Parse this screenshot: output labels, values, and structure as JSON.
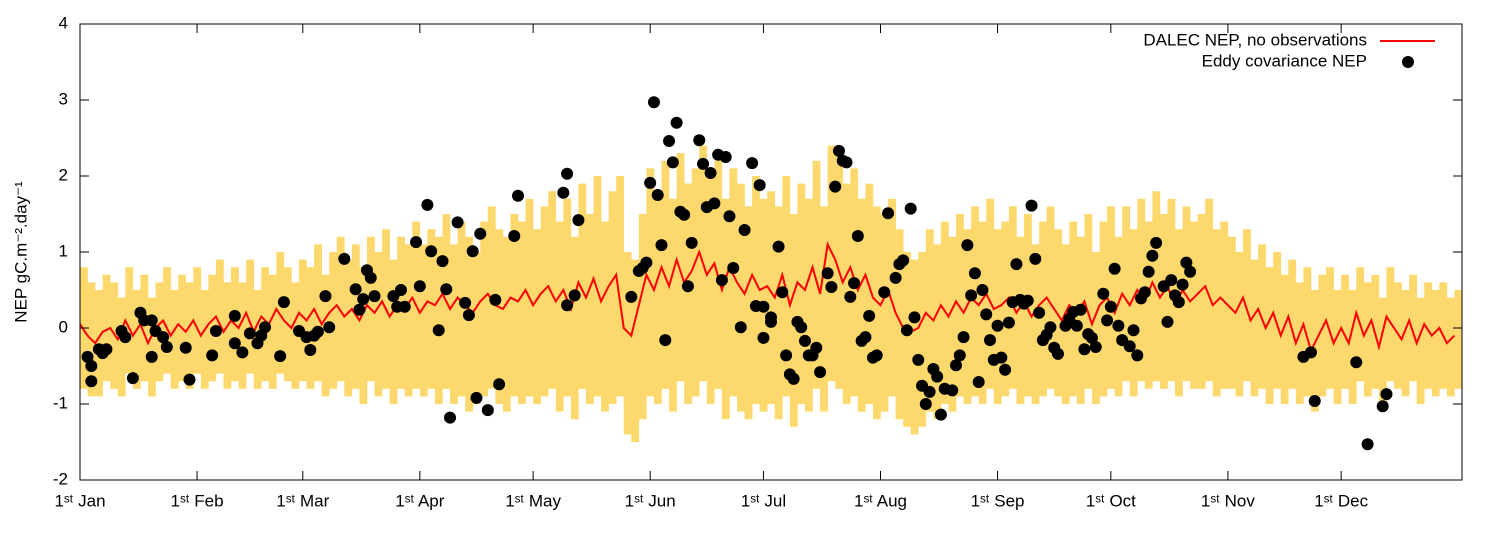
{
  "chart_data": {
    "type": "line",
    "ylabel": "NEP gC.m⁻².day⁻¹",
    "xlim": [
      0,
      366
    ],
    "ylim": [
      -2,
      4
    ],
    "yticks": [
      -2,
      -1,
      0,
      1,
      2,
      3,
      4
    ],
    "xticks": [
      {
        "value": 0,
        "label": "1ˢᵗ Jan"
      },
      {
        "value": 31,
        "label": "1ˢᵗ Feb"
      },
      {
        "value": 59,
        "label": "1ˢᵗ Mar"
      },
      {
        "value": 90,
        "label": "1ˢᵗ Apr"
      },
      {
        "value": 120,
        "label": "1ˢᵗ May"
      },
      {
        "value": 151,
        "label": "1ˢᵗ Jun"
      },
      {
        "value": 181,
        "label": "1ˢᵗ Jul"
      },
      {
        "value": 212,
        "label": "1ˢᵗ Aug"
      },
      {
        "value": 243,
        "label": "1ˢᵗ Sep"
      },
      {
        "value": 273,
        "label": "1ˢᵗ Oct"
      },
      {
        "value": 304,
        "label": "1ˢᵗ Nov"
      },
      {
        "value": 334,
        "label": "1ˢᵗ Dec"
      }
    ],
    "legend": "top-right",
    "x": [
      0,
      2,
      4,
      6,
      8,
      10,
      12,
      14,
      16,
      18,
      20,
      22,
      24,
      26,
      28,
      30,
      32,
      34,
      36,
      38,
      40,
      42,
      44,
      46,
      48,
      50,
      52,
      54,
      56,
      58,
      60,
      62,
      64,
      66,
      68,
      70,
      72,
      74,
      76,
      78,
      80,
      82,
      84,
      86,
      88,
      90,
      92,
      94,
      96,
      98,
      100,
      102,
      104,
      106,
      108,
      110,
      112,
      114,
      116,
      118,
      120,
      122,
      124,
      126,
      128,
      130,
      132,
      134,
      136,
      138,
      140,
      142,
      144,
      146,
      148,
      150,
      152,
      154,
      156,
      158,
      160,
      162,
      164,
      166,
      168,
      170,
      172,
      174,
      176,
      178,
      180,
      182,
      184,
      186,
      188,
      190,
      192,
      194,
      196,
      198,
      200,
      202,
      204,
      206,
      208,
      210,
      212,
      214,
      216,
      218,
      220,
      222,
      224,
      226,
      228,
      230,
      232,
      234,
      236,
      238,
      240,
      242,
      244,
      246,
      248,
      250,
      252,
      254,
      256,
      258,
      260,
      262,
      264,
      266,
      268,
      270,
      272,
      274,
      276,
      278,
      280,
      282,
      284,
      286,
      288,
      290,
      292,
      294,
      296,
      298,
      300,
      302,
      304,
      306,
      308,
      310,
      312,
      314,
      316,
      318,
      320,
      322,
      324,
      326,
      328,
      330,
      332,
      334,
      336,
      338,
      340,
      342,
      344,
      346,
      348,
      350,
      352,
      354,
      356,
      358,
      360,
      362,
      364
    ],
    "series": [
      {
        "name": "DALEC NEP, no observations",
        "color": "#ff0000",
        "values": [
          0.05,
          -0.1,
          -0.2,
          -0.05,
          0.0,
          -0.15,
          0.1,
          -0.1,
          0.05,
          -0.2,
          0.0,
          0.1,
          -0.1,
          0.05,
          -0.05,
          0.1,
          -0.1,
          0.05,
          0.15,
          -0.05,
          0.1,
          0.0,
          0.2,
          -0.05,
          0.15,
          0.05,
          0.25,
          0.1,
          0.0,
          0.2,
          0.1,
          0.25,
          0.05,
          0.2,
          0.3,
          0.15,
          0.25,
          0.1,
          0.3,
          0.2,
          0.35,
          0.15,
          0.3,
          0.25,
          0.4,
          0.2,
          0.35,
          0.3,
          0.45,
          0.25,
          0.4,
          0.3,
          0.2,
          0.35,
          0.45,
          0.3,
          0.25,
          0.4,
          0.35,
          0.5,
          0.3,
          0.45,
          0.55,
          0.35,
          0.5,
          0.25,
          0.6,
          0.4,
          0.65,
          0.35,
          0.55,
          0.7,
          0.0,
          -0.1,
          0.3,
          0.7,
          0.5,
          0.8,
          0.55,
          0.9,
          0.6,
          0.75,
          1.0,
          0.7,
          0.85,
          0.5,
          0.8,
          0.6,
          0.45,
          0.7,
          0.5,
          0.55,
          0.4,
          0.7,
          0.3,
          0.6,
          0.5,
          0.8,
          0.45,
          1.1,
          0.9,
          0.6,
          0.8,
          0.5,
          0.7,
          0.4,
          0.3,
          0.5,
          0.2,
          0.0,
          -0.05,
          0.0,
          0.2,
          0.1,
          0.3,
          0.15,
          0.35,
          0.2,
          0.4,
          0.3,
          0.45,
          0.25,
          0.3,
          0.4,
          0.2,
          0.35,
          0.15,
          0.3,
          0.4,
          0.25,
          0.1,
          0.3,
          0.2,
          0.35,
          0.05,
          0.3,
          0.4,
          0.2,
          0.45,
          0.3,
          0.5,
          0.35,
          0.6,
          0.4,
          0.55,
          0.3,
          0.5,
          0.35,
          0.45,
          0.55,
          0.3,
          0.4,
          0.3,
          0.2,
          0.4,
          0.1,
          0.25,
          0.0,
          0.2,
          -0.1,
          0.15,
          -0.2,
          0.05,
          -0.3,
          -0.1,
          0.1,
          -0.2,
          0.0,
          -0.2,
          0.2,
          -0.1,
          0.1,
          -0.25,
          0.15,
          0.0,
          -0.15,
          0.1,
          -0.2,
          0.05,
          -0.1,
          0.0,
          -0.2,
          -0.1
        ]
      }
    ],
    "band": {
      "color": "#fdd86c",
      "upper": [
        0.8,
        0.6,
        0.5,
        0.7,
        0.6,
        0.4,
        0.8,
        0.5,
        0.7,
        0.4,
        0.6,
        0.8,
        0.5,
        0.7,
        0.6,
        0.8,
        0.5,
        0.7,
        0.9,
        0.6,
        0.8,
        0.6,
        0.9,
        0.5,
        0.8,
        0.7,
        1.0,
        0.8,
        0.6,
        0.9,
        0.8,
        1.1,
        0.7,
        1.0,
        1.2,
        0.9,
        1.1,
        0.8,
        1.2,
        1.0,
        1.3,
        0.9,
        1.2,
        1.1,
        1.4,
        1.1,
        1.3,
        1.2,
        1.5,
        1.1,
        1.4,
        1.2,
        1.0,
        1.4,
        1.6,
        1.3,
        1.2,
        1.5,
        1.4,
        1.7,
        1.3,
        1.6,
        1.8,
        1.4,
        1.7,
        1.2,
        1.9,
        1.5,
        2.0,
        1.4,
        1.8,
        2.0,
        1.0,
        0.9,
        1.5,
        2.1,
        1.8,
        2.2,
        1.7,
        2.3,
        1.9,
        2.1,
        2.4,
        2.0,
        2.2,
        1.7,
        2.1,
        1.9,
        1.6,
        2.0,
        1.7,
        1.8,
        1.6,
        2.0,
        1.5,
        1.9,
        1.7,
        2.2,
        1.6,
        2.4,
        2.3,
        1.9,
        2.1,
        1.7,
        1.9,
        1.6,
        1.5,
        1.7,
        1.3,
        1.0,
        0.9,
        1.0,
        1.3,
        1.1,
        1.4,
        1.2,
        1.5,
        1.3,
        1.6,
        1.4,
        1.7,
        1.3,
        1.4,
        1.6,
        1.2,
        1.5,
        1.1,
        1.4,
        1.6,
        1.3,
        1.1,
        1.4,
        1.2,
        1.5,
        1.0,
        1.4,
        1.6,
        1.2,
        1.6,
        1.3,
        1.7,
        1.4,
        1.8,
        1.5,
        1.7,
        1.3,
        1.6,
        1.4,
        1.5,
        1.7,
        1.3,
        1.4,
        1.2,
        1.0,
        1.3,
        0.9,
        1.1,
        0.8,
        1.0,
        0.7,
        0.9,
        0.6,
        0.8,
        0.5,
        0.7,
        0.8,
        0.5,
        0.7,
        0.5,
        0.8,
        0.6,
        0.7,
        0.4,
        0.8,
        0.6,
        0.5,
        0.7,
        0.4,
        0.6,
        0.5,
        0.6,
        0.4,
        0.5
      ],
      "lower": [
        -0.8,
        -0.9,
        -0.9,
        -0.7,
        -0.8,
        -0.9,
        -0.6,
        -0.8,
        -0.7,
        -0.9,
        -0.7,
        -0.6,
        -0.8,
        -0.7,
        -0.8,
        -0.6,
        -0.8,
        -0.7,
        -0.6,
        -0.8,
        -0.7,
        -0.8,
        -0.6,
        -0.8,
        -0.7,
        -0.8,
        -0.6,
        -0.7,
        -0.8,
        -0.7,
        -0.8,
        -0.7,
        -0.9,
        -0.8,
        -0.7,
        -0.9,
        -0.8,
        -1.0,
        -0.7,
        -0.9,
        -0.8,
        -1.0,
        -0.8,
        -0.9,
        -0.8,
        -0.9,
        -0.8,
        -1.0,
        -0.8,
        -1.0,
        -0.9,
        -1.1,
        -1.0,
        -0.9,
        -0.8,
        -1.0,
        -1.1,
        -0.9,
        -1.0,
        -0.9,
        -1.0,
        -0.9,
        -0.8,
        -1.1,
        -0.9,
        -1.2,
        -0.8,
        -1.0,
        -0.9,
        -1.1,
        -1.0,
        -0.9,
        -1.4,
        -1.5,
        -1.2,
        -0.9,
        -1.0,
        -0.8,
        -1.1,
        -0.7,
        -1.0,
        -0.9,
        -0.7,
        -1.0,
        -0.8,
        -1.2,
        -0.9,
        -1.1,
        -1.2,
        -1.0,
        -1.1,
        -1.0,
        -1.2,
        -0.9,
        -1.3,
        -1.0,
        -1.1,
        -0.8,
        -1.1,
        -0.7,
        -0.8,
        -1.0,
        -0.9,
        -1.1,
        -1.0,
        -1.2,
        -1.1,
        -0.9,
        -1.2,
        -1.3,
        -1.4,
        -1.3,
        -1.1,
        -1.2,
        -1.0,
        -1.1,
        -0.9,
        -1.0,
        -0.9,
        -1.0,
        -0.8,
        -1.0,
        -0.9,
        -0.8,
        -1.0,
        -0.9,
        -1.0,
        -0.9,
        -0.8,
        -0.9,
        -1.0,
        -0.9,
        -1.0,
        -0.8,
        -1.0,
        -0.9,
        -0.8,
        -0.9,
        -0.7,
        -0.9,
        -0.7,
        -0.8,
        -0.7,
        -0.8,
        -0.7,
        -0.9,
        -0.7,
        -0.8,
        -0.8,
        -0.7,
        -0.9,
        -0.8,
        -0.8,
        -0.9,
        -0.7,
        -0.9,
        -0.8,
        -1.0,
        -0.8,
        -1.0,
        -0.8,
        -1.0,
        -0.9,
        -1.1,
        -0.9,
        -0.8,
        -1.0,
        -0.8,
        -1.0,
        -0.7,
        -0.9,
        -0.8,
        -1.0,
        -0.7,
        -0.8,
        -0.9,
        -0.7,
        -1.0,
        -0.8,
        -0.9,
        -0.8,
        -0.9,
        -0.8
      ]
    },
    "scatter": {
      "name": "Eddy covariance NEP",
      "color": "#000000",
      "x": [
        2,
        3,
        3,
        5,
        6,
        7,
        11,
        12,
        14,
        16,
        17,
        19,
        19,
        20,
        22,
        23,
        28,
        29,
        35,
        36,
        41,
        41,
        43,
        45,
        47,
        48,
        49,
        53,
        54,
        58,
        60,
        61,
        62,
        63,
        65,
        66,
        70,
        73,
        74,
        75,
        76,
        77,
        78,
        83,
        84,
        85,
        86,
        89,
        90,
        92,
        93,
        95,
        96,
        97,
        98,
        100,
        102,
        103,
        104,
        105,
        106,
        108,
        110,
        111,
        115,
        116,
        128,
        129,
        129,
        131,
        132,
        146,
        148,
        149,
        150,
        151,
        152,
        153,
        154,
        155,
        156,
        157,
        158,
        159,
        160,
        161,
        162,
        164,
        165,
        166,
        167,
        168,
        169,
        170,
        171,
        172,
        173,
        175,
        176,
        178,
        179,
        180,
        181,
        181,
        183,
        183,
        185,
        186,
        187,
        188,
        189,
        190,
        191,
        192,
        193,
        194,
        195,
        196,
        198,
        199,
        200,
        201,
        202,
        203,
        204,
        205,
        206,
        207,
        208,
        209,
        210,
        211,
        213,
        214,
        216,
        217,
        218,
        219,
        220,
        221,
        222,
        223,
        224,
        225,
        226,
        227,
        228,
        229,
        231,
        232,
        233,
        234,
        235,
        236,
        237,
        238,
        239,
        240,
        241,
        242,
        243,
        244,
        245,
        246,
        247,
        248,
        249,
        250,
        251,
        252,
        253,
        254,
        255,
        256,
        257,
        258,
        259,
        261,
        262,
        263,
        264,
        265,
        266,
        267,
        268,
        269,
        271,
        272,
        273,
        274,
        275,
        276,
        278,
        279,
        280,
        281,
        282,
        283,
        284,
        285,
        287,
        288,
        289,
        290,
        291,
        292,
        293,
        294,
        324,
        326,
        327,
        338,
        341,
        345,
        346
      ],
      "y": [
        -0.38,
        -0.5,
        -0.7,
        -0.28,
        -0.33,
        -0.28,
        -0.04,
        -0.12,
        -0.66,
        0.2,
        0.1,
        -0.38,
        0.1,
        -0.04,
        -0.12,
        -0.25,
        -0.26,
        -0.68,
        -0.36,
        -0.04,
        -0.2,
        0.16,
        -0.32,
        -0.07,
        -0.2,
        -0.1,
        0.01,
        -0.37,
        0.34,
        -0.04,
        -0.12,
        -0.29,
        -0.1,
        -0.05,
        0.42,
        0.01,
        0.91,
        0.51,
        0.24,
        0.38,
        0.76,
        0.66,
        0.42,
        0.42,
        0.28,
        0.5,
        0.28,
        1.13,
        0.55,
        1.62,
        1.01,
        -0.03,
        0.88,
        0.51,
        -1.18,
        1.39,
        0.33,
        0.17,
        1.01,
        -0.92,
        1.24,
        -1.08,
        0.37,
        -0.74,
        1.21,
        1.74,
        1.78,
        2.03,
        0.3,
        0.43,
        1.42,
        0.41,
        0.75,
        0.79,
        0.86,
        1.91,
        2.97,
        1.75,
        1.09,
        -0.16,
        2.46,
        2.18,
        2.7,
        1.53,
        1.49,
        0.55,
        1.12,
        2.47,
        2.16,
        1.59,
        2.04,
        1.64,
        2.28,
        0.63,
        2.25,
        1.47,
        0.79,
        0.01,
        1.29,
        2.17,
        0.29,
        1.88,
        0.28,
        -0.13,
        0.14,
        0.08,
        1.07,
        0.47,
        -0.36,
        -0.61,
        -0.67,
        0.08,
        0.01,
        -0.17,
        -0.36,
        -0.36,
        -0.26,
        -0.58,
        0.72,
        0.54,
        1.86,
        2.33,
        2.2,
        2.18,
        0.41,
        0.59,
        1.21,
        -0.17,
        -0.12,
        0.16,
        -0.39,
        -0.36,
        0.47,
        1.51,
        0.66,
        0.84,
        0.89,
        -0.03,
        1.57,
        0.14,
        -0.42,
        -0.76,
        -1.0,
        -0.84,
        -0.54,
        -0.64,
        -1.14,
        -0.8,
        -0.82,
        -0.49,
        -0.36,
        -0.12,
        1.09,
        0.43,
        0.72,
        -0.71,
        0.5,
        0.18,
        -0.16,
        -0.42,
        0.03,
        -0.39,
        -0.55,
        0.07,
        0.34,
        0.84,
        0.37,
        0.32,
        0.36,
        1.61,
        0.91,
        0.2,
        -0.16,
        -0.09,
        0.01,
        -0.26,
        -0.34,
        0.03,
        0.12,
        0.21,
        0.03,
        0.24,
        -0.28,
        -0.08,
        -0.13,
        -0.25,
        0.45,
        0.1,
        0.28,
        0.78,
        0.03,
        -0.16,
        -0.24,
        -0.03,
        -0.36,
        0.39,
        0.47,
        0.74,
        0.95,
        1.12,
        0.55,
        0.08,
        0.63,
        0.43,
        0.34,
        0.57,
        0.86,
        0.74,
        -0.38,
        -0.32,
        -0.96,
        -0.45,
        -1.53,
        -1.03,
        -0.87
      ]
    }
  }
}
